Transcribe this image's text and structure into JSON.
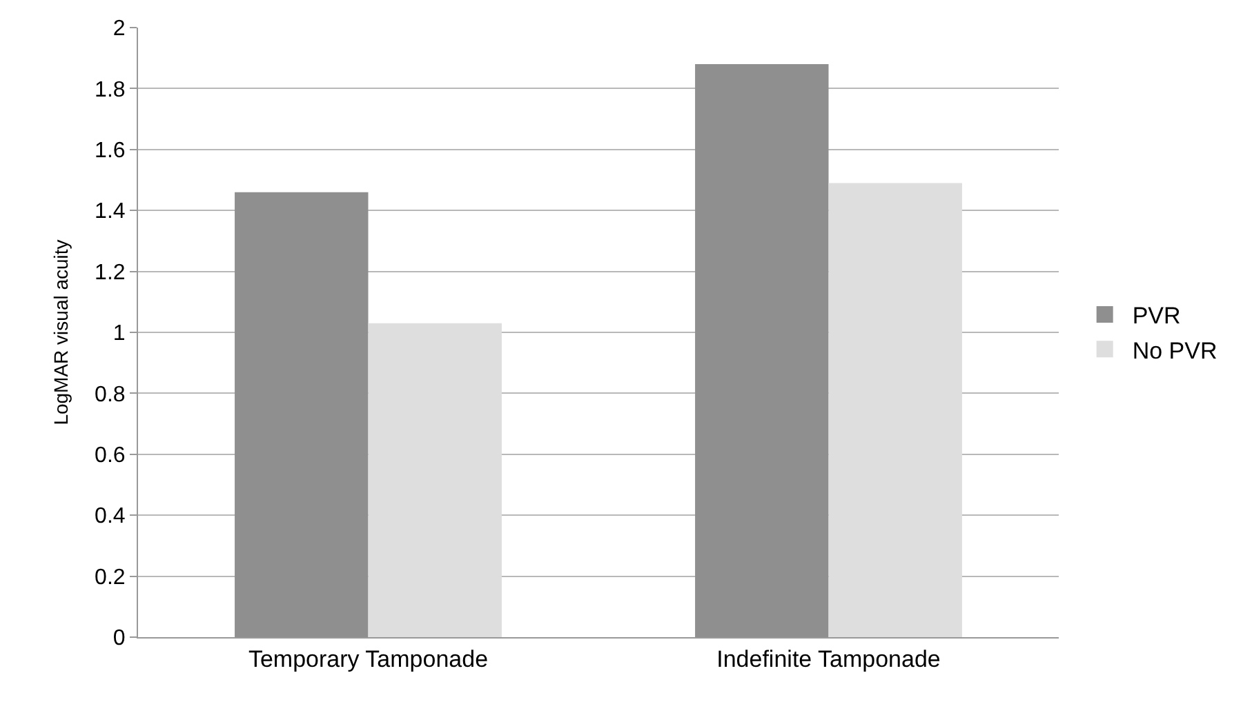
{
  "chart_data": {
    "type": "bar",
    "ylabel": "LogMAR visual acuity",
    "categories": [
      "Temporary Tamponade",
      "Indefinite Tamponade"
    ],
    "series": [
      {
        "name": "PVR",
        "color": "#8f8f8f",
        "values": [
          1.46,
          1.88
        ]
      },
      {
        "name": "No PVR",
        "color": "#dedede",
        "values": [
          1.03,
          1.49
        ]
      }
    ],
    "ylim": [
      0,
      2
    ],
    "yticks": [
      0,
      0.2,
      0.4,
      0.6,
      0.8,
      1,
      1.2,
      1.4,
      1.6,
      1.8,
      2
    ],
    "grid": "y",
    "legend": "right"
  }
}
